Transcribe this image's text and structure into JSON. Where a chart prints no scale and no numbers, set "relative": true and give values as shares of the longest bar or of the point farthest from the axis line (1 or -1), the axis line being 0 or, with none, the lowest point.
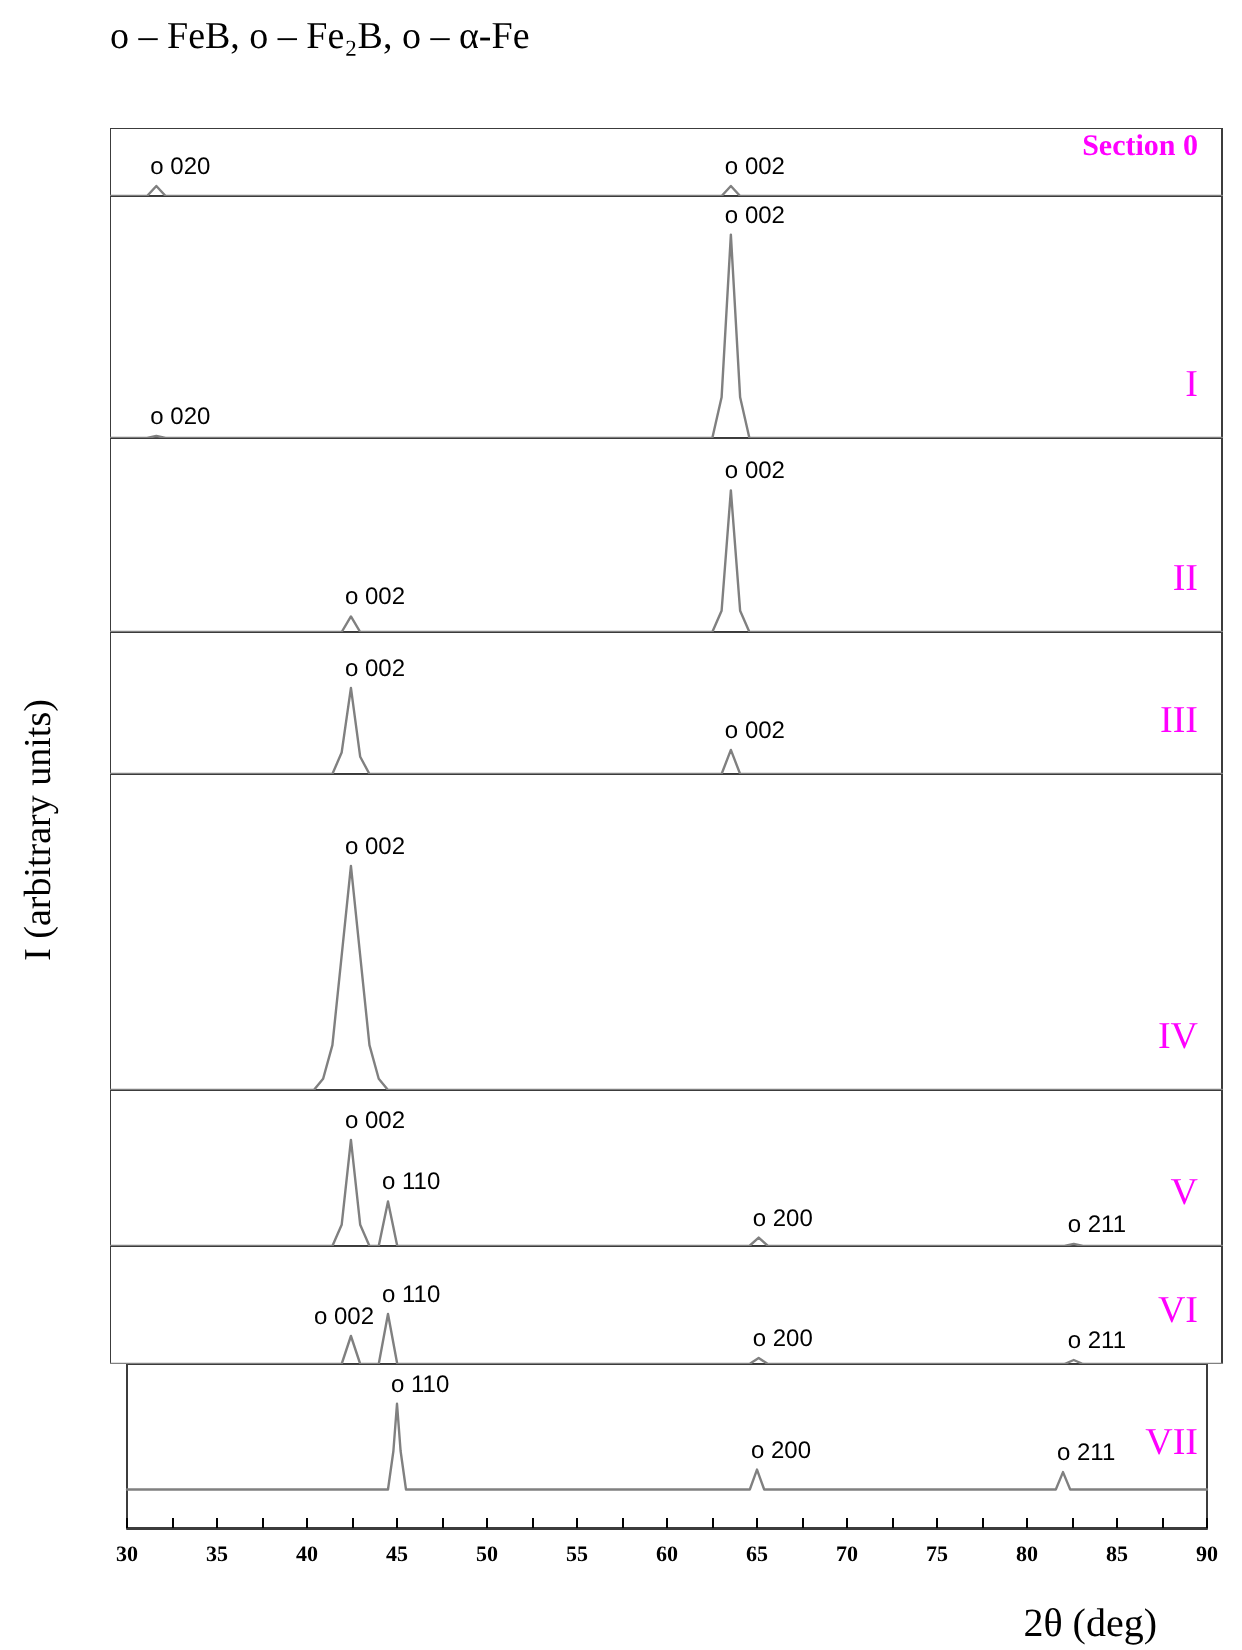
{
  "chart_data": [
    {
      "type": "line",
      "title": "Section 0",
      "relative": true,
      "tick_labels": false,
      "grid": false,
      "subtitle": "o – FeB, o – Fe₂B, o – α-Fe",
      "annotations": [
        "o 020",
        "o 002"
      ],
      "categories": [
        null,
        null,
        null,
        null,
        null,
        null,
        null,
        null,
        null,
        null,
        null,
        null,
        null,
        null,
        null,
        null,
        null,
        null,
        null,
        null,
        null,
        null,
        null,
        null,
        null,
        null,
        null,
        null,
        null,
        null,
        null,
        null,
        null,
        null,
        null,
        null,
        null,
        null,
        null,
        null,
        null,
        null,
        null,
        null,
        null,
        null,
        null,
        null,
        null,
        null,
        null,
        null,
        null,
        null,
        null,
        null,
        null,
        null,
        null,
        null,
        null,
        null,
        null,
        null,
        null,
        null,
        null,
        null,
        null,
        null,
        null,
        null,
        null,
        null,
        null,
        null,
        null,
        null,
        null,
        null,
        null,
        null,
        null,
        null,
        null,
        null,
        null,
        null,
        null,
        null,
        null,
        null,
        null,
        null,
        null,
        null,
        null,
        null,
        null,
        null,
        null,
        null,
        null,
        null,
        null,
        null,
        null,
        null,
        null,
        null,
        null,
        null,
        null,
        null,
        null,
        null,
        null,
        null,
        null,
        null,
        null
      ],
      "series": [
        {
          "color": "#808080",
          "values": [
            0,
            0,
            0,
            0,
            0,
            1,
            0,
            0,
            0,
            0,
            0,
            0,
            0,
            0,
            0,
            0,
            0,
            0,
            0,
            0,
            0,
            0,
            0,
            0,
            0,
            0,
            0,
            0,
            0,
            0,
            0,
            0,
            0,
            0,
            0,
            0,
            0,
            0,
            0,
            0,
            0,
            0,
            0,
            0,
            0,
            0,
            0,
            0,
            0,
            0,
            0,
            0,
            0,
            0,
            0,
            0,
            0,
            0,
            0,
            0,
            0,
            0,
            0,
            0,
            0,
            0,
            0,
            1,
            0,
            0,
            0,
            0,
            0,
            0,
            0,
            0,
            0,
            0,
            0,
            0,
            0,
            0,
            0,
            0,
            0,
            0,
            0,
            0,
            0,
            0,
            0,
            0,
            0,
            0,
            0,
            0,
            0,
            0,
            0,
            0,
            0,
            0,
            0,
            0,
            0,
            0,
            0,
            0,
            0,
            0,
            0,
            0,
            0,
            0,
            0,
            0,
            0,
            0,
            0,
            0,
            0
          ]
        }
      ]
    },
    {
      "type": "line",
      "title": "I",
      "relative": true,
      "tick_labels": false,
      "grid": false,
      "annotations": [
        "o 020",
        "o 002"
      ],
      "categories": [
        null,
        null,
        null,
        null,
        null,
        null,
        null,
        null,
        null,
        null,
        null,
        null,
        null,
        null,
        null,
        null,
        null,
        null,
        null,
        null,
        null,
        null,
        null,
        null,
        null,
        null,
        null,
        null,
        null,
        null,
        null,
        null,
        null,
        null,
        null,
        null,
        null,
        null,
        null,
        null,
        null,
        null,
        null,
        null,
        null,
        null,
        null,
        null,
        null,
        null,
        null,
        null,
        null,
        null,
        null,
        null,
        null,
        null,
        null,
        null,
        null,
        null,
        null,
        null,
        null,
        null,
        null,
        null,
        null,
        null,
        null,
        null,
        null,
        null,
        null,
        null,
        null,
        null,
        null,
        null,
        null,
        null,
        null,
        null,
        null,
        null,
        null,
        null,
        null,
        null,
        null,
        null,
        null,
        null,
        null,
        null,
        null,
        null,
        null,
        null,
        null,
        null,
        null,
        null,
        null,
        null,
        null,
        null,
        null,
        null,
        null,
        null,
        null,
        null,
        null,
        null,
        null,
        null,
        null,
        null,
        null
      ],
      "series": [
        {
          "color": "#808080",
          "values": [
            0,
            0,
            0,
            0,
            0,
            0.01,
            0,
            0,
            0,
            0,
            0,
            0,
            0,
            0,
            0,
            0,
            0,
            0,
            0,
            0,
            0,
            0,
            0,
            0,
            0,
            0,
            0,
            0,
            0,
            0,
            0,
            0,
            0,
            0,
            0,
            0,
            0,
            0,
            0,
            0,
            0,
            0,
            0,
            0,
            0,
            0,
            0,
            0,
            0,
            0,
            0,
            0,
            0,
            0,
            0,
            0,
            0,
            0,
            0,
            0,
            0,
            0,
            0,
            0,
            0,
            0,
            0.2,
            1,
            0.2,
            0,
            0,
            0,
            0,
            0,
            0,
            0,
            0,
            0,
            0,
            0,
            0,
            0,
            0,
            0,
            0,
            0,
            0,
            0,
            0,
            0,
            0,
            0,
            0,
            0,
            0,
            0,
            0,
            0,
            0,
            0,
            0,
            0,
            0,
            0,
            0,
            0,
            0,
            0,
            0,
            0,
            0,
            0,
            0,
            0,
            0,
            0,
            0,
            0,
            0,
            0,
            0
          ]
        }
      ]
    },
    {
      "type": "line",
      "title": "II",
      "relative": true,
      "tick_labels": false,
      "grid": false,
      "annotations": [
        "o 002",
        "o 002"
      ],
      "categories": [
        null,
        null,
        null,
        null,
        null,
        null,
        null,
        null,
        null,
        null,
        null,
        null,
        null,
        null,
        null,
        null,
        null,
        null,
        null,
        null,
        null,
        null,
        null,
        null,
        null,
        null,
        null,
        null,
        null,
        null,
        null,
        null,
        null,
        null,
        null,
        null,
        null,
        null,
        null,
        null,
        null,
        null,
        null,
        null,
        null,
        null,
        null,
        null,
        null,
        null,
        null,
        null,
        null,
        null,
        null,
        null,
        null,
        null,
        null,
        null,
        null,
        null,
        null,
        null,
        null,
        null,
        null,
        null,
        null,
        null,
        null,
        null,
        null,
        null,
        null,
        null,
        null,
        null,
        null,
        null,
        null,
        null,
        null,
        null,
        null,
        null,
        null,
        null,
        null,
        null,
        null,
        null,
        null,
        null,
        null,
        null,
        null,
        null,
        null,
        null,
        null,
        null,
        null,
        null,
        null,
        null,
        null,
        null,
        null,
        null,
        null,
        null,
        null,
        null,
        null,
        null,
        null,
        null,
        null,
        null,
        null
      ],
      "series": [
        {
          "color": "#808080",
          "values": [
            0,
            0,
            0,
            0,
            0,
            0,
            0,
            0,
            0,
            0,
            0,
            0,
            0,
            0,
            0,
            0,
            0,
            0,
            0,
            0,
            0,
            0,
            0,
            0,
            0,
            0,
            0.11,
            0,
            0,
            0,
            0,
            0,
            0,
            0,
            0,
            0,
            0,
            0,
            0,
            0,
            0,
            0,
            0,
            0,
            0,
            0,
            0,
            0,
            0,
            0,
            0,
            0,
            0,
            0,
            0,
            0,
            0,
            0,
            0,
            0,
            0,
            0,
            0,
            0,
            0,
            0,
            0.15,
            1,
            0.15,
            0,
            0,
            0,
            0,
            0,
            0,
            0,
            0,
            0,
            0,
            0,
            0,
            0,
            0,
            0,
            0,
            0,
            0,
            0,
            0,
            0,
            0,
            0,
            0,
            0,
            0,
            0,
            0,
            0,
            0,
            0,
            0,
            0,
            0,
            0,
            0,
            0,
            0,
            0,
            0,
            0,
            0,
            0,
            0,
            0,
            0,
            0,
            0,
            0,
            0,
            0,
            0
          ]
        }
      ]
    },
    {
      "type": "line",
      "title": "III",
      "relative": true,
      "tick_labels": false,
      "grid": false,
      "annotations": [
        "o 002",
        "o 002"
      ],
      "categories": [
        null,
        null,
        null,
        null,
        null,
        null,
        null,
        null,
        null,
        null,
        null,
        null,
        null,
        null,
        null,
        null,
        null,
        null,
        null,
        null,
        null,
        null,
        null,
        null,
        null,
        null,
        null,
        null,
        null,
        null,
        null,
        null,
        null,
        null,
        null,
        null,
        null,
        null,
        null,
        null,
        null,
        null,
        null,
        null,
        null,
        null,
        null,
        null,
        null,
        null,
        null,
        null,
        null,
        null,
        null,
        null,
        null,
        null,
        null,
        null,
        null,
        null,
        null,
        null,
        null,
        null,
        null,
        null,
        null,
        null,
        null,
        null,
        null,
        null,
        null,
        null,
        null,
        null,
        null,
        null,
        null,
        null,
        null,
        null,
        null,
        null,
        null,
        null,
        null,
        null,
        null,
        null,
        null,
        null,
        null,
        null,
        null,
        null,
        null,
        null,
        null,
        null,
        null,
        null,
        null,
        null,
        null,
        null,
        null,
        null,
        null,
        null,
        null,
        null,
        null,
        null,
        null,
        null,
        null,
        null,
        null
      ],
      "series": [
        {
          "color": "#808080",
          "values": [
            0,
            0,
            0,
            0,
            0,
            0,
            0,
            0,
            0,
            0,
            0,
            0,
            0,
            0,
            0,
            0,
            0,
            0,
            0,
            0,
            0,
            0,
            0,
            0,
            0,
            0.25,
            1,
            0.2,
            0,
            0,
            0,
            0,
            0,
            0,
            0,
            0,
            0,
            0,
            0,
            0,
            0,
            0,
            0,
            0,
            0,
            0,
            0,
            0,
            0,
            0,
            0,
            0,
            0,
            0,
            0,
            0,
            0,
            0,
            0,
            0,
            0,
            0,
            0,
            0,
            0,
            0,
            0,
            0.28,
            0,
            0,
            0,
            0,
            0,
            0,
            0,
            0,
            0,
            0,
            0,
            0,
            0,
            0,
            0,
            0,
            0,
            0,
            0,
            0,
            0,
            0,
            0,
            0,
            0,
            0,
            0,
            0,
            0,
            0,
            0,
            0,
            0,
            0,
            0,
            0,
            0,
            0,
            0,
            0,
            0,
            0,
            0,
            0,
            0,
            0,
            0,
            0,
            0,
            0,
            0,
            0,
            0
          ]
        }
      ]
    },
    {
      "type": "line",
      "title": "IV",
      "ylabel": "I (arbitrary units)",
      "relative": true,
      "tick_labels": false,
      "grid": false,
      "annotations": [
        "o 002"
      ],
      "categories": [
        null,
        null,
        null,
        null,
        null,
        null,
        null,
        null,
        null,
        null,
        null,
        null,
        null,
        null,
        null,
        null,
        null,
        null,
        null,
        null,
        null,
        null,
        null,
        null,
        null,
        null,
        null,
        null,
        null,
        null,
        null,
        null,
        null,
        null,
        null,
        null,
        null,
        null,
        null,
        null,
        null,
        null,
        null,
        null,
        null,
        null,
        null,
        null,
        null,
        null,
        null,
        null,
        null,
        null,
        null,
        null,
        null,
        null,
        null,
        null,
        null,
        null,
        null,
        null,
        null,
        null,
        null,
        null,
        null,
        null,
        null,
        null,
        null,
        null,
        null,
        null,
        null,
        null,
        null,
        null,
        null,
        null,
        null,
        null,
        null,
        null,
        null,
        null,
        null,
        null,
        null,
        null,
        null,
        null,
        null,
        null,
        null,
        null,
        null,
        null,
        null,
        null,
        null,
        null,
        null,
        null,
        null,
        null,
        null,
        null,
        null,
        null,
        null,
        null,
        null,
        null,
        null,
        null,
        null,
        null,
        null
      ],
      "series": [
        {
          "color": "#808080",
          "values": [
            0,
            0,
            0,
            0,
            0,
            0,
            0,
            0,
            0,
            0,
            0,
            0,
            0,
            0,
            0,
            0,
            0,
            0,
            0,
            0,
            0,
            0,
            0,
            0.05,
            0.2,
            0.6,
            1,
            0.6,
            0.2,
            0.05,
            0,
            0,
            0,
            0,
            0,
            0,
            0,
            0,
            0,
            0,
            0,
            0,
            0,
            0,
            0,
            0,
            0,
            0,
            0,
            0,
            0,
            0,
            0,
            0,
            0,
            0,
            0,
            0,
            0,
            0,
            0,
            0,
            0,
            0,
            0,
            0,
            0,
            0,
            0,
            0,
            0,
            0,
            0,
            0,
            0,
            0,
            0,
            0,
            0,
            0,
            0,
            0,
            0,
            0,
            0,
            0,
            0,
            0,
            0,
            0,
            0,
            0,
            0,
            0,
            0,
            0,
            0,
            0,
            0,
            0,
            0,
            0,
            0,
            0,
            0,
            0,
            0,
            0,
            0,
            0,
            0,
            0,
            0,
            0,
            0,
            0,
            0,
            0,
            0,
            0,
            0
          ]
        }
      ]
    },
    {
      "type": "line",
      "title": "V",
      "relative": true,
      "tick_labels": false,
      "grid": false,
      "annotations": [
        "o 002",
        "o 110",
        "o 200",
        "o 211"
      ],
      "categories": [
        null,
        null,
        null,
        null,
        null,
        null,
        null,
        null,
        null,
        null,
        null,
        null,
        null,
        null,
        null,
        null,
        null,
        null,
        null,
        null,
        null,
        null,
        null,
        null,
        null,
        null,
        null,
        null,
        null,
        null,
        null,
        null,
        null,
        null,
        null,
        null,
        null,
        null,
        null,
        null,
        null,
        null,
        null,
        null,
        null,
        null,
        null,
        null,
        null,
        null,
        null,
        null,
        null,
        null,
        null,
        null,
        null,
        null,
        null,
        null,
        null,
        null,
        null,
        null,
        null,
        null,
        null,
        null,
        null,
        null,
        null,
        null,
        null,
        null,
        null,
        null,
        null,
        null,
        null,
        null,
        null,
        null,
        null,
        null,
        null,
        null,
        null,
        null,
        null,
        null,
        null,
        null,
        null,
        null,
        null,
        null,
        null,
        null,
        null,
        null,
        null,
        null,
        null,
        null,
        null,
        null,
        null,
        null,
        null,
        null,
        null,
        null,
        null,
        null,
        null,
        null,
        null,
        null,
        null,
        null,
        null
      ],
      "series": [
        {
          "color": "#808080",
          "values": [
            0,
            0,
            0,
            0,
            0,
            0,
            0,
            0,
            0,
            0,
            0,
            0,
            0,
            0,
            0,
            0,
            0,
            0,
            0,
            0,
            0,
            0,
            0,
            0,
            0,
            0.2,
            1,
            0.2,
            0,
            0,
            0.42,
            0,
            0,
            0,
            0,
            0,
            0,
            0,
            0,
            0,
            0,
            0,
            0,
            0,
            0,
            0,
            0,
            0,
            0,
            0,
            0,
            0,
            0,
            0,
            0,
            0,
            0,
            0,
            0,
            0,
            0,
            0,
            0,
            0,
            0,
            0,
            0,
            0,
            0,
            0,
            0.08,
            0,
            0,
            0,
            0,
            0,
            0,
            0,
            0,
            0,
            0,
            0,
            0,
            0,
            0,
            0,
            0,
            0,
            0,
            0,
            0,
            0,
            0,
            0,
            0,
            0,
            0,
            0,
            0,
            0,
            0,
            0,
            0,
            0,
            0.02,
            0,
            0,
            0,
            0,
            0,
            0,
            0,
            0,
            0,
            0,
            0,
            0,
            0,
            0,
            0,
            0
          ]
        }
      ]
    },
    {
      "type": "line",
      "title": "VI",
      "relative": true,
      "tick_labels": false,
      "grid": false,
      "annotations": [
        "o 002",
        "o 110",
        "o 200",
        "o 211"
      ],
      "categories": [
        null,
        null,
        null,
        null,
        null,
        null,
        null,
        null,
        null,
        null,
        null,
        null,
        null,
        null,
        null,
        null,
        null,
        null,
        null,
        null,
        null,
        null,
        null,
        null,
        null,
        null,
        null,
        null,
        null,
        null,
        null,
        null,
        null,
        null,
        null,
        null,
        null,
        null,
        null,
        null,
        null,
        null,
        null,
        null,
        null,
        null,
        null,
        null,
        null,
        null,
        null,
        null,
        null,
        null,
        null,
        null,
        null,
        null,
        null,
        null,
        null,
        null,
        null,
        null,
        null,
        null,
        null,
        null,
        null,
        null,
        null,
        null,
        null,
        null,
        null,
        null,
        null,
        null,
        null,
        null,
        null,
        null,
        null,
        null,
        null,
        null,
        null,
        null,
        null,
        null,
        null,
        null,
        null,
        null,
        null,
        null,
        null,
        null,
        null,
        null,
        null,
        null,
        null,
        null,
        null,
        null,
        null,
        null,
        null,
        null,
        null,
        null,
        null,
        null,
        null,
        null,
        null,
        null,
        null,
        null,
        null
      ],
      "series": [
        {
          "color": "#808080",
          "values": [
            0,
            0,
            0,
            0,
            0,
            0,
            0,
            0,
            0,
            0,
            0,
            0,
            0,
            0,
            0,
            0,
            0,
            0,
            0,
            0,
            0,
            0,
            0,
            0,
            0,
            0,
            0.56,
            0,
            0,
            0,
            1,
            0,
            0,
            0,
            0,
            0,
            0,
            0,
            0,
            0,
            0,
            0,
            0,
            0,
            0,
            0,
            0,
            0,
            0,
            0,
            0,
            0,
            0,
            0,
            0,
            0,
            0,
            0,
            0,
            0,
            0,
            0,
            0,
            0,
            0,
            0,
            0,
            0,
            0,
            0,
            0.12,
            0,
            0,
            0,
            0,
            0,
            0,
            0,
            0,
            0,
            0,
            0,
            0,
            0,
            0,
            0,
            0,
            0,
            0,
            0,
            0,
            0,
            0,
            0,
            0,
            0,
            0,
            0,
            0,
            0,
            0,
            0,
            0,
            0,
            0.08,
            0,
            0,
            0,
            0,
            0,
            0,
            0,
            0,
            0,
            0,
            0,
            0,
            0,
            0,
            0,
            0
          ]
        }
      ]
    },
    {
      "type": "line",
      "title": "VII",
      "xlabel": "2θ (deg)",
      "relative": true,
      "xlim": [
        30,
        90
      ],
      "grid": false,
      "xticks": [
        30,
        {
          "value": 32.5,
          "label": null
        },
        35,
        {
          "value": 37.5,
          "label": null
        },
        40,
        {
          "value": 42.5,
          "label": null
        },
        45,
        {
          "value": 47.5,
          "label": null
        },
        50,
        {
          "value": 52.5,
          "label": null
        },
        55,
        {
          "value": 57.5,
          "label": null
        },
        60,
        {
          "value": 62.5,
          "label": null
        },
        65,
        {
          "value": 67.5,
          "label": null
        },
        70,
        {
          "value": 72.5,
          "label": null
        },
        75,
        {
          "value": 77.5,
          "label": null
        },
        80,
        {
          "value": 82.5,
          "label": null
        },
        85,
        {
          "value": 87.5,
          "label": null
        },
        90
      ],
      "annotations": [
        {
          "text": "o 110",
          "x": 45,
          "y": 1
        },
        {
          "text": "o 200",
          "x": 65,
          "y": 0.47
        },
        {
          "text": "o 211",
          "x": 82,
          "y": 0.45
        }
      ],
      "series": [
        {
          "color": "#808080",
          "x": [
            30,
            44.5,
            44.8,
            45.0,
            45.2,
            45.5,
            64.6,
            65.0,
            65.4,
            81.6,
            82,
            82.4,
            90
          ],
          "values": [
            0.31,
            0.31,
            0.62,
            1,
            0.62,
            0.31,
            0.31,
            0.47,
            0.31,
            0.31,
            0.45,
            0.31,
            0.31
          ]
        }
      ]
    }
  ]
}
